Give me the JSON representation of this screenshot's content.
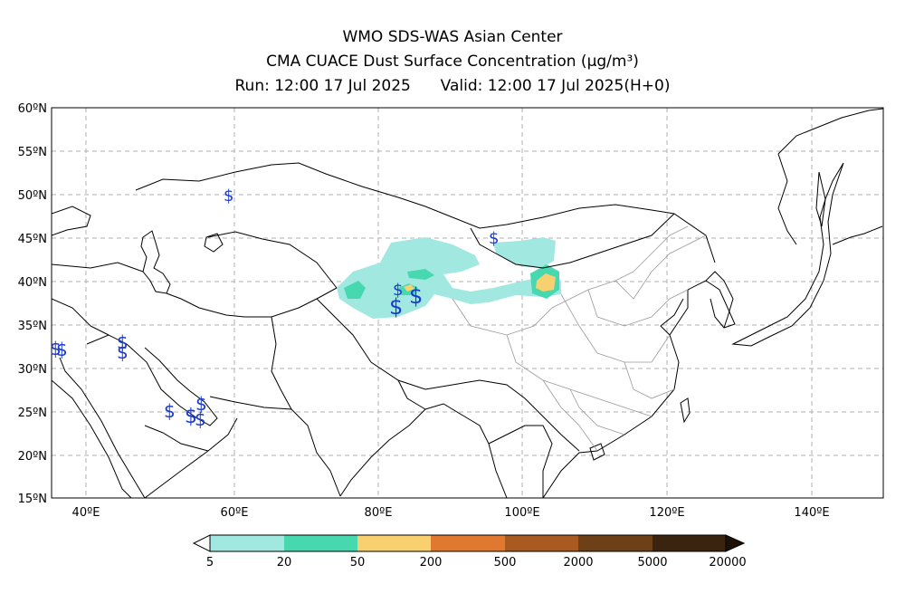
{
  "header": {
    "line1": "WMO SDS-WAS Asian Center",
    "line2": "CMA CUACE Dust Surface Concentration (μg/m³)",
    "line3_run": "Run: 12:00 17 Jul 2025",
    "line3_valid": "Valid: 12:00 17 Jul 2025(H+0)"
  },
  "map": {
    "lat_labels": [
      "60ºN",
      "55ºN",
      "50ºN",
      "45ºN",
      "40ºN",
      "35ºN",
      "30ºN",
      "25ºN",
      "20ºN",
      "15ºN"
    ],
    "lon_labels": [
      "40ºE",
      "60ºE",
      "80ºE",
      "100ºE",
      "120ºE",
      "140ºE"
    ],
    "lat_range": [
      15,
      60
    ],
    "lon_range": [
      35.5,
      150
    ],
    "dust_symbol": "$",
    "gridlines": true
  },
  "colorbar": {
    "ticks": [
      "5",
      "20",
      "50",
      "200",
      "500",
      "2000",
      "5000",
      "20000"
    ],
    "colors": [
      "#a0e8e0",
      "#48d8b0",
      "#f8d070",
      "#e07830",
      "#a85a20",
      "#6e4018",
      "#3a2410"
    ]
  }
}
